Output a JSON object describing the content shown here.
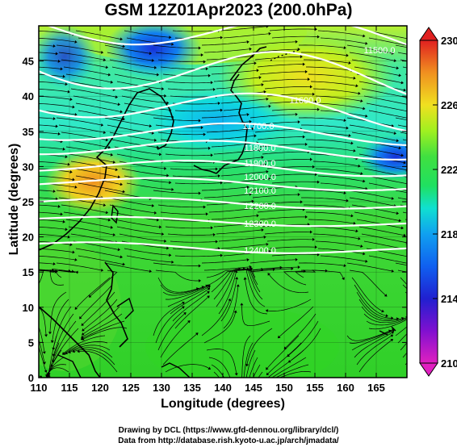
{
  "title": "GSM 12Z01Apr2023 (200.0hPa)",
  "credit_line1": "Drawing by DCL (https://www.gfd-dennou.org/library/dcl/)",
  "credit_line2": "Data from http://database.rish.kyoto-u.ac.jp/arch/jmadata/",
  "x_axis": {
    "label": "Longitude (degrees)",
    "range": [
      110,
      170
    ],
    "ticks": [
      "110",
      "115",
      "120",
      "125",
      "130",
      "135",
      "140",
      "145",
      "150",
      "155",
      "160",
      "165"
    ]
  },
  "y_axis": {
    "label": "Latitude  (degrees)",
    "range": [
      0,
      50
    ],
    "ticks": [
      "0",
      "5",
      "10",
      "15",
      "20",
      "25",
      "30",
      "35",
      "40",
      "45"
    ]
  },
  "colorbar": {
    "ticks": [
      "230",
      "226",
      "222",
      "218",
      "214",
      "210"
    ],
    "range": [
      210,
      230
    ],
    "colors": [
      "#e020c0",
      "#8010d0",
      "#2020d0",
      "#1060f0",
      "#10a0f0",
      "#10e0d0",
      "#20e060",
      "#40e040",
      "#a0f020",
      "#f0e020",
      "#f09020",
      "#e02020"
    ]
  },
  "contour_labels": [
    "11500.0",
    "11600.0",
    "11700.0",
    "11800.0",
    "11900.0",
    "12000.0",
    "12100.0",
    "12200.0",
    "12300.0",
    "12400.0"
  ]
}
